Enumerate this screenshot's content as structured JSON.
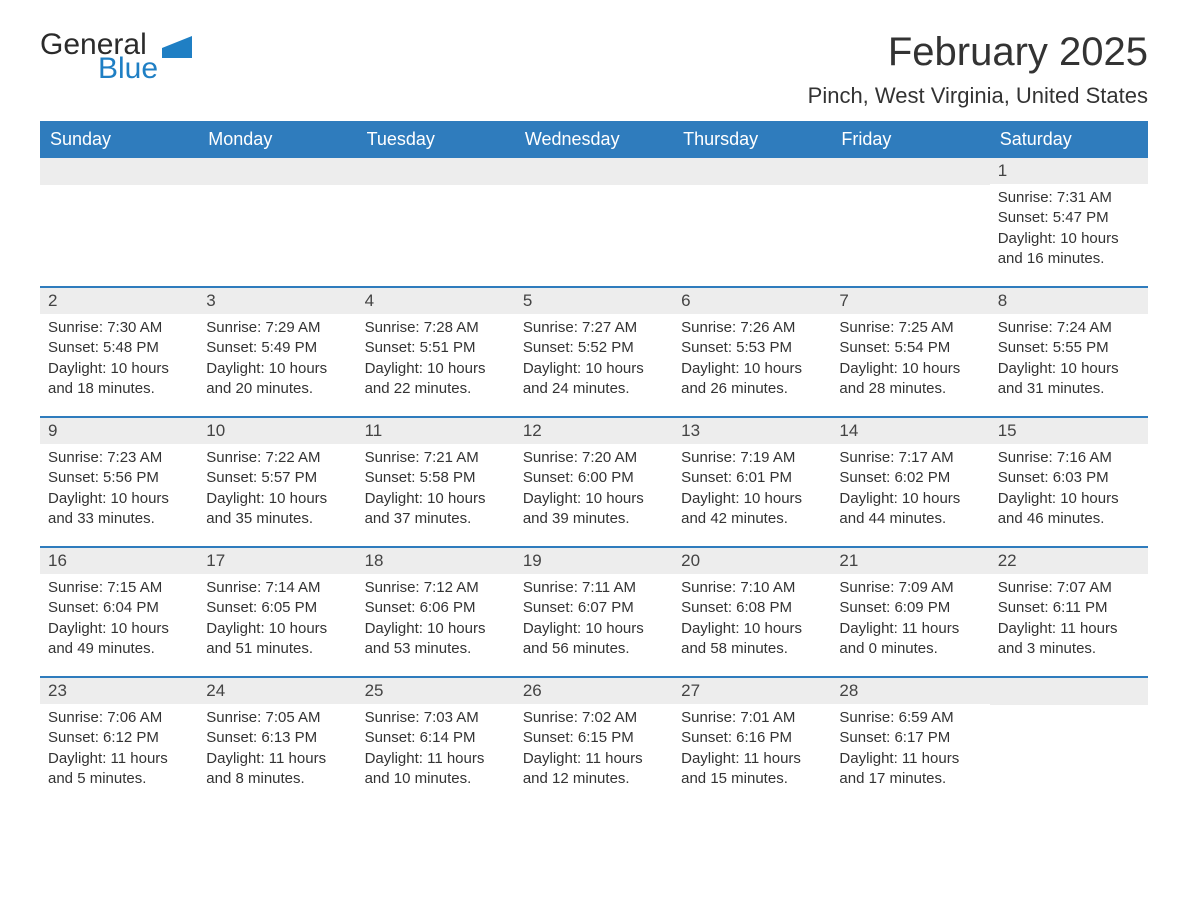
{
  "logo": {
    "general": "General",
    "blue": "Blue"
  },
  "title": "February 2025",
  "location": "Pinch, West Virginia, United States",
  "colors": {
    "header_bg": "#2f7cbd",
    "header_text": "#ffffff",
    "daynum_bg": "#ededed",
    "week_border": "#2f7cbd",
    "logo_blue": "#1f7fc4"
  },
  "weekdays": [
    "Sunday",
    "Monday",
    "Tuesday",
    "Wednesday",
    "Thursday",
    "Friday",
    "Saturday"
  ],
  "labels": {
    "sunrise": "Sunrise: ",
    "sunset": "Sunset: ",
    "daylight": "Daylight: "
  },
  "weeks": [
    [
      null,
      null,
      null,
      null,
      null,
      null,
      {
        "n": "1",
        "sr": "7:31 AM",
        "ss": "5:47 PM",
        "dl": "10 hours and 16 minutes."
      }
    ],
    [
      {
        "n": "2",
        "sr": "7:30 AM",
        "ss": "5:48 PM",
        "dl": "10 hours and 18 minutes."
      },
      {
        "n": "3",
        "sr": "7:29 AM",
        "ss": "5:49 PM",
        "dl": "10 hours and 20 minutes."
      },
      {
        "n": "4",
        "sr": "7:28 AM",
        "ss": "5:51 PM",
        "dl": "10 hours and 22 minutes."
      },
      {
        "n": "5",
        "sr": "7:27 AM",
        "ss": "5:52 PM",
        "dl": "10 hours and 24 minutes."
      },
      {
        "n": "6",
        "sr": "7:26 AM",
        "ss": "5:53 PM",
        "dl": "10 hours and 26 minutes."
      },
      {
        "n": "7",
        "sr": "7:25 AM",
        "ss": "5:54 PM",
        "dl": "10 hours and 28 minutes."
      },
      {
        "n": "8",
        "sr": "7:24 AM",
        "ss": "5:55 PM",
        "dl": "10 hours and 31 minutes."
      }
    ],
    [
      {
        "n": "9",
        "sr": "7:23 AM",
        "ss": "5:56 PM",
        "dl": "10 hours and 33 minutes."
      },
      {
        "n": "10",
        "sr": "7:22 AM",
        "ss": "5:57 PM",
        "dl": "10 hours and 35 minutes."
      },
      {
        "n": "11",
        "sr": "7:21 AM",
        "ss": "5:58 PM",
        "dl": "10 hours and 37 minutes."
      },
      {
        "n": "12",
        "sr": "7:20 AM",
        "ss": "6:00 PM",
        "dl": "10 hours and 39 minutes."
      },
      {
        "n": "13",
        "sr": "7:19 AM",
        "ss": "6:01 PM",
        "dl": "10 hours and 42 minutes."
      },
      {
        "n": "14",
        "sr": "7:17 AM",
        "ss": "6:02 PM",
        "dl": "10 hours and 44 minutes."
      },
      {
        "n": "15",
        "sr": "7:16 AM",
        "ss": "6:03 PM",
        "dl": "10 hours and 46 minutes."
      }
    ],
    [
      {
        "n": "16",
        "sr": "7:15 AM",
        "ss": "6:04 PM",
        "dl": "10 hours and 49 minutes."
      },
      {
        "n": "17",
        "sr": "7:14 AM",
        "ss": "6:05 PM",
        "dl": "10 hours and 51 minutes."
      },
      {
        "n": "18",
        "sr": "7:12 AM",
        "ss": "6:06 PM",
        "dl": "10 hours and 53 minutes."
      },
      {
        "n": "19",
        "sr": "7:11 AM",
        "ss": "6:07 PM",
        "dl": "10 hours and 56 minutes."
      },
      {
        "n": "20",
        "sr": "7:10 AM",
        "ss": "6:08 PM",
        "dl": "10 hours and 58 minutes."
      },
      {
        "n": "21",
        "sr": "7:09 AM",
        "ss": "6:09 PM",
        "dl": "11 hours and 0 minutes."
      },
      {
        "n": "22",
        "sr": "7:07 AM",
        "ss": "6:11 PM",
        "dl": "11 hours and 3 minutes."
      }
    ],
    [
      {
        "n": "23",
        "sr": "7:06 AM",
        "ss": "6:12 PM",
        "dl": "11 hours and 5 minutes."
      },
      {
        "n": "24",
        "sr": "7:05 AM",
        "ss": "6:13 PM",
        "dl": "11 hours and 8 minutes."
      },
      {
        "n": "25",
        "sr": "7:03 AM",
        "ss": "6:14 PM",
        "dl": "11 hours and 10 minutes."
      },
      {
        "n": "26",
        "sr": "7:02 AM",
        "ss": "6:15 PM",
        "dl": "11 hours and 12 minutes."
      },
      {
        "n": "27",
        "sr": "7:01 AM",
        "ss": "6:16 PM",
        "dl": "11 hours and 15 minutes."
      },
      {
        "n": "28",
        "sr": "6:59 AM",
        "ss": "6:17 PM",
        "dl": "11 hours and 17 minutes."
      },
      null
    ]
  ]
}
